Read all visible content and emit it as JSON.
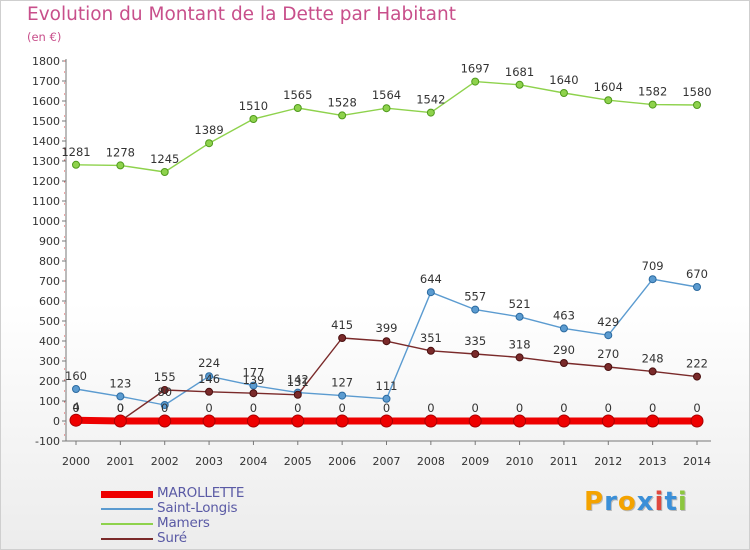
{
  "title": "Evolution du Montant de la Dette par Habitant",
  "subtitle": "(en €)",
  "chart_data": {
    "type": "line",
    "title": "Evolution du Montant de la Dette par Habitant",
    "subtitle": "(en €)",
    "xlabel": "",
    "ylabel": "",
    "x": [
      2000,
      2001,
      2002,
      2003,
      2004,
      2005,
      2006,
      2007,
      2008,
      2009,
      2010,
      2011,
      2012,
      2013,
      2014
    ],
    "ylim": [
      -100,
      1800
    ],
    "ytick_step": 100,
    "grid": false,
    "legend_position": "bottom-left",
    "series": [
      {
        "name": "MAROLLETTE",
        "color": "#ee0000",
        "values": [
          4,
          0,
          0,
          0,
          0,
          0,
          0,
          0,
          0,
          0,
          0,
          0,
          0,
          0,
          0
        ]
      },
      {
        "name": "Saint-Longis",
        "color": "#5b9bd0",
        "values": [
          160,
          123,
          80,
          224,
          177,
          142,
          127,
          111,
          644,
          557,
          521,
          463,
          429,
          709,
          670
        ]
      },
      {
        "name": "Mamers",
        "color": "#8ed24c",
        "values": [
          1281,
          1278,
          1245,
          1389,
          1510,
          1565,
          1528,
          1564,
          1542,
          1697,
          1681,
          1640,
          1604,
          1582,
          1580
        ]
      },
      {
        "name": "Suré",
        "color": "#7a2a2a",
        "values": [
          0,
          0,
          155,
          146,
          139,
          131,
          415,
          399,
          351,
          335,
          318,
          290,
          270,
          248,
          222
        ]
      }
    ]
  },
  "legend": [
    {
      "label": "MAROLLETTE",
      "color": "#ee0000"
    },
    {
      "label": "Saint-Longis",
      "color": "#5b9bd0"
    },
    {
      "label": "Mamers",
      "color": "#8ed24c"
    },
    {
      "label": "Suré",
      "color": "#7a2a2a"
    }
  ],
  "logo": {
    "letters": [
      "P",
      "r",
      "o",
      "x",
      "i",
      "t",
      "i"
    ],
    "colors": [
      "#f4a300",
      "#3a8fd8",
      "#f4a300",
      "#3a8fd8",
      "#e0483e",
      "#3a8fd8",
      "#8cc63f"
    ]
  }
}
